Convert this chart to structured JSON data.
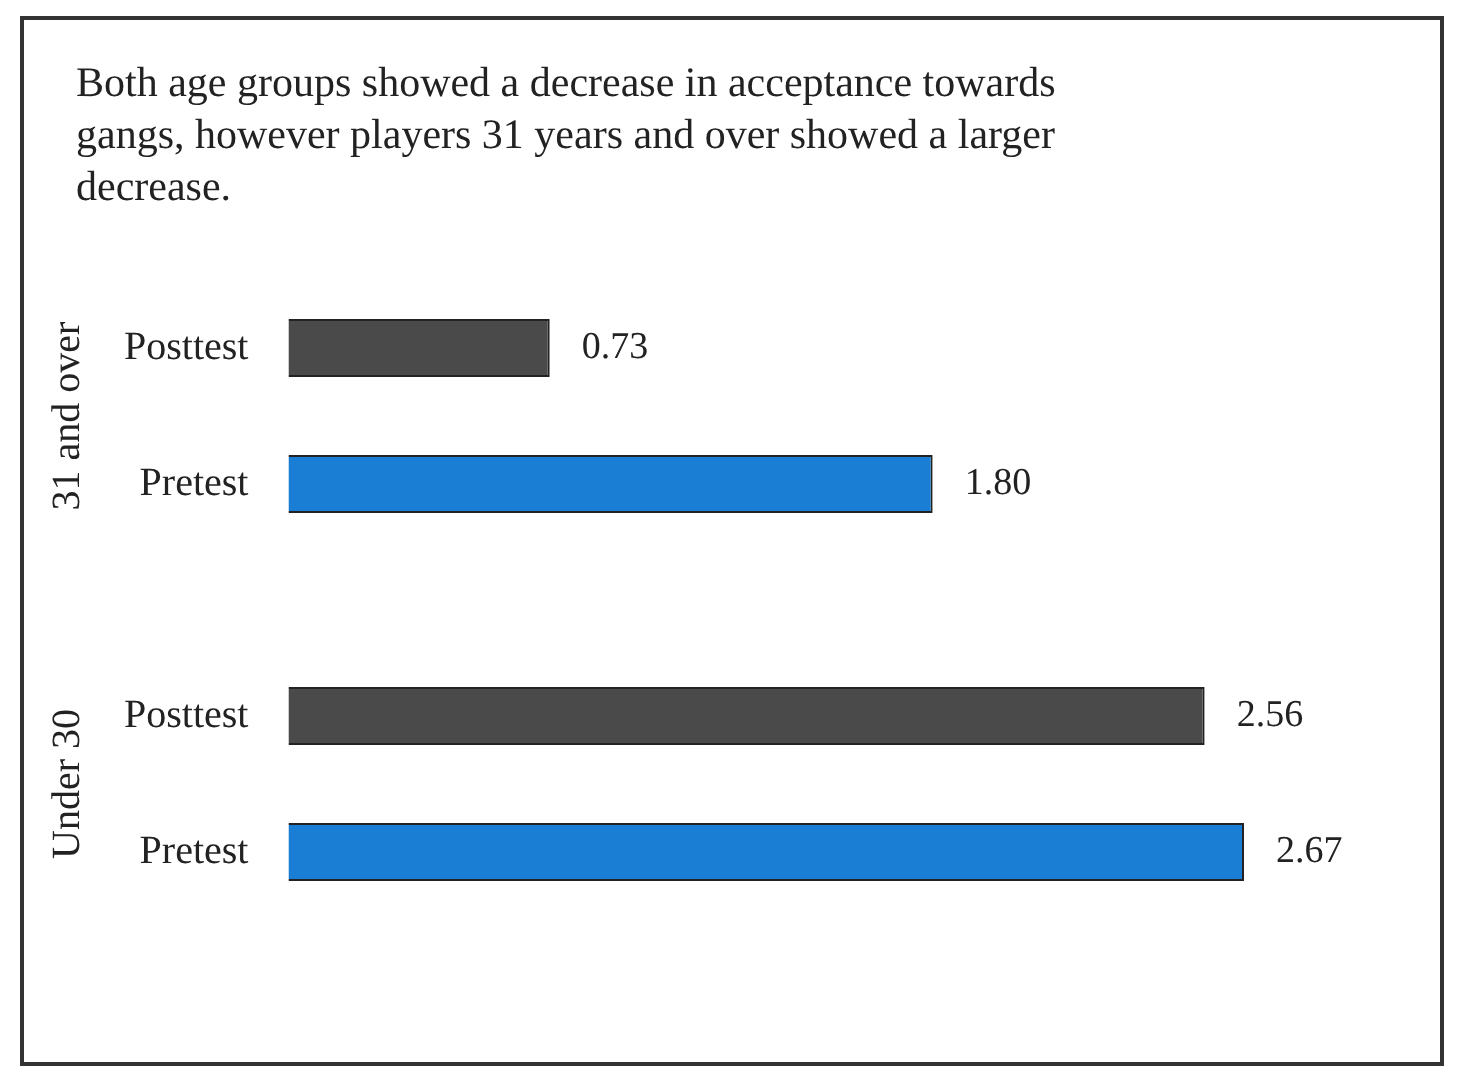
{
  "chart_data": [
    {
      "type": "bar",
      "orientation": "horizontal",
      "title": "Both age groups showed a decrease in acceptance towards gangs, however players 31 years and over showed a larger decrease.",
      "ylabel": "31 and over",
      "categories": [
        "Posttest",
        "Pretest"
      ],
      "values": [
        0.73,
        1.8
      ],
      "value_labels": [
        "0.73",
        "1.80"
      ],
      "colors": [
        "#4a4a4a",
        "#1a7fd4"
      ],
      "tick_labels": "y",
      "grid": false,
      "legend": false
    },
    {
      "type": "bar",
      "orientation": "horizontal",
      "ylabel": "Under 30",
      "categories": [
        "Posttest",
        "Pretest"
      ],
      "values": [
        2.56,
        2.67
      ],
      "value_labels": [
        "2.56",
        "2.67"
      ],
      "colors": [
        "#4a4a4a",
        "#1a7fd4"
      ],
      "tick_labels": "y",
      "grid": false,
      "legend": false
    }
  ]
}
